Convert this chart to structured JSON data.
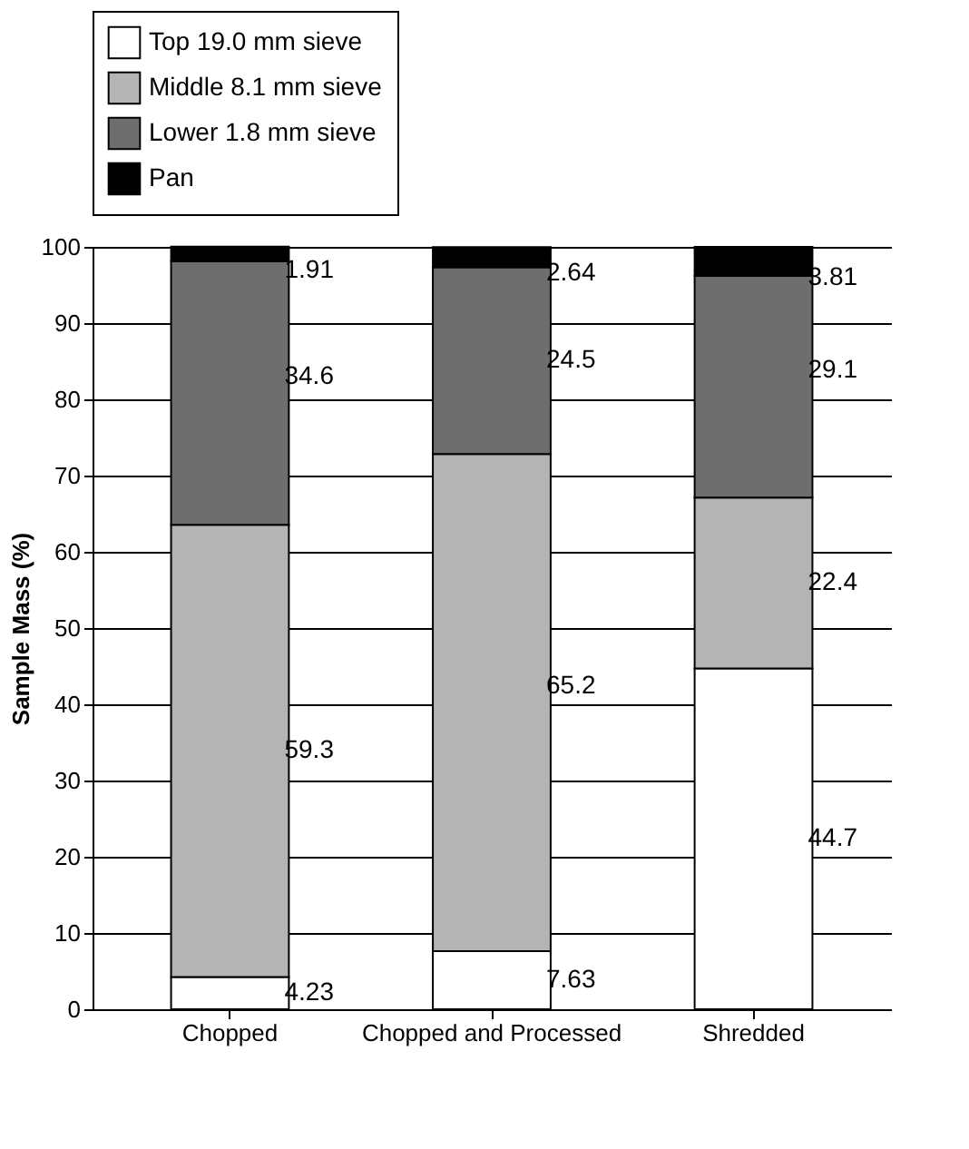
{
  "chart_data": {
    "type": "bar",
    "ylabel": "Sample Mass (%)",
    "categories": [
      "Chopped",
      "Chopped and Processed",
      "Shredded"
    ],
    "stacked": true,
    "ylim": [
      0,
      100
    ],
    "yticks": [
      0,
      10,
      20,
      30,
      40,
      50,
      60,
      70,
      80,
      90,
      100
    ],
    "grid": "y",
    "legend": "top",
    "data_labels": true,
    "series": [
      {
        "name": "Top 19.0 mm sieve",
        "color": "#ffffff",
        "values": [
          4.23,
          7.63,
          44.7
        ]
      },
      {
        "name": "Middle 8.1 mm sieve",
        "color": "#b4b4b4",
        "values": [
          59.3,
          65.2,
          22.4
        ]
      },
      {
        "name": "Lower 1.8 mm sieve",
        "color": "#6e6e6e",
        "values": [
          34.6,
          24.5,
          29.1
        ]
      },
      {
        "name": "Pan",
        "color": "#000000",
        "values": [
          1.91,
          2.64,
          3.81
        ]
      }
    ]
  }
}
